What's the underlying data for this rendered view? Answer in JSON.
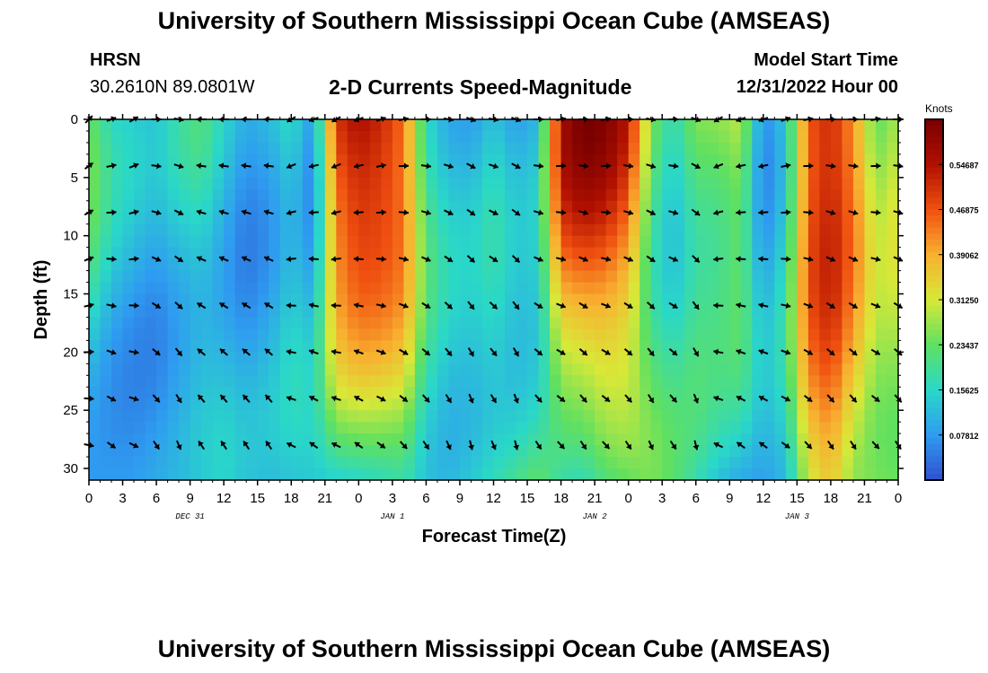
{
  "header": {
    "title": "University of Southern Mississippi Ocean Cube (AMSEAS)",
    "station": "HRSN",
    "coordinates": "30.2610N  89.0801W",
    "subtitle": "2-D Currents Speed-Magnitude",
    "model_start_label": "Model Start Time",
    "model_start_value": "12/31/2022 Hour 00"
  },
  "footer": {
    "title": "University of Southern Mississippi Ocean Cube (AMSEAS)"
  },
  "chart_data": {
    "type": "heatmap",
    "title": "2-D Currents Speed-Magnitude",
    "xlabel": "Forecast Time(Z)",
    "ylabel": "Depth (ft)",
    "xlim": [
      0,
      72
    ],
    "ylim": [
      31,
      0
    ],
    "x_ticks": [
      0,
      3,
      6,
      9,
      12,
      15,
      18,
      21,
      24,
      27,
      30,
      33,
      36,
      39,
      42,
      45,
      48,
      51,
      54,
      57,
      60,
      63,
      66,
      69,
      72
    ],
    "x_tick_labels": [
      "0",
      "3",
      "6",
      "9",
      "12",
      "15",
      "18",
      "21",
      "0",
      "3",
      "6",
      "9",
      "12",
      "15",
      "18",
      "21",
      "0",
      "3",
      "6",
      "9",
      "12",
      "15",
      "18",
      "21",
      "0"
    ],
    "y_ticks": [
      0,
      5,
      10,
      15,
      20,
      25,
      30
    ],
    "y_tick_labels": [
      "0",
      "5",
      "10",
      "15",
      "20",
      "25",
      "30"
    ],
    "date_labels": [
      {
        "hour": 9,
        "label": "DEC 31"
      },
      {
        "hour": 27,
        "label": "JAN 1"
      },
      {
        "hour": 45,
        "label": "JAN 2"
      },
      {
        "hour": 63,
        "label": "JAN 3"
      }
    ],
    "colorbar": {
      "label": "Knots",
      "min": 0.0,
      "max": 0.625,
      "ticks": [
        0.07812,
        0.15625,
        0.23437,
        0.3125,
        0.39062,
        0.46875,
        0.54687
      ],
      "tick_labels": [
        "0.07812",
        "0.15625",
        "0.23437",
        "0.31250",
        "0.39062",
        "0.46875",
        "0.54687"
      ],
      "colors": [
        "#3050d0",
        "#2f9cf0",
        "#2ad8c8",
        "#60e060",
        "#d8e838",
        "#f8b030",
        "#f05010",
        "#b01000",
        "#7a0000"
      ]
    },
    "vector_depths": [
      0,
      4,
      8,
      12,
      16,
      20,
      24,
      28
    ],
    "vector_hours": [
      0,
      2,
      4,
      6,
      8,
      10,
      12,
      14,
      16,
      18,
      20,
      22,
      24,
      26,
      28,
      30,
      32,
      34,
      36,
      38,
      40,
      42,
      44,
      46,
      48,
      50,
      52,
      54,
      56,
      58,
      60,
      62,
      64,
      66,
      68,
      70,
      72
    ],
    "vector_directions_deg": [
      45,
      70,
      60,
      90,
      100,
      270,
      270,
      270,
      270,
      240,
      250,
      240,
      250,
      70,
      80,
      90,
      100,
      110,
      100,
      110,
      90,
      80,
      90,
      80,
      90,
      100,
      90,
      110,
      240,
      250,
      250,
      70,
      80,
      90,
      90,
      80,
      90
    ],
    "speed_profile": {
      "hours": [
        0,
        2,
        4,
        6,
        8,
        10,
        12,
        14,
        16,
        18,
        20,
        22,
        24,
        26,
        28,
        30,
        32,
        34,
        36,
        38,
        40,
        42,
        44,
        46,
        48,
        50,
        52,
        54,
        56,
        58,
        60,
        62,
        64,
        66,
        68,
        70,
        72
      ],
      "surface_knots": [
        0.24,
        0.15,
        0.12,
        0.1,
        0.15,
        0.18,
        0.12,
        0.07,
        0.1,
        0.16,
        0.08,
        0.52,
        0.58,
        0.55,
        0.48,
        0.2,
        0.12,
        0.1,
        0.14,
        0.08,
        0.1,
        0.54,
        0.6,
        0.58,
        0.5,
        0.22,
        0.14,
        0.24,
        0.26,
        0.3,
        0.08,
        0.16,
        0.5,
        0.55,
        0.45,
        0.26,
        0.3
      ],
      "bottom_knots": [
        0.08,
        0.07,
        0.06,
        0.07,
        0.08,
        0.1,
        0.12,
        0.1,
        0.1,
        0.12,
        0.14,
        0.16,
        0.18,
        0.2,
        0.22,
        0.16,
        0.14,
        0.16,
        0.18,
        0.2,
        0.22,
        0.16,
        0.14,
        0.18,
        0.2,
        0.22,
        0.2,
        0.16,
        0.12,
        0.1,
        0.1,
        0.14,
        0.34,
        0.4,
        0.3,
        0.28,
        0.26
      ]
    }
  }
}
